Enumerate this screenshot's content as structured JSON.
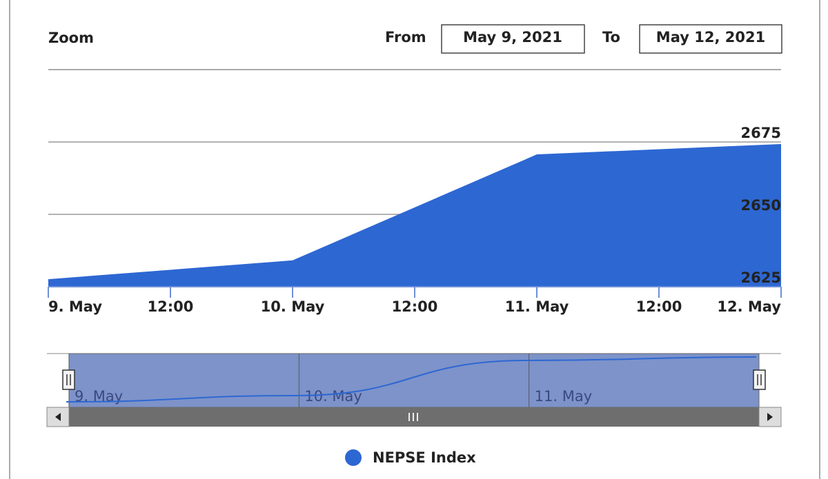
{
  "chart_data": {
    "type": "area",
    "range_selector": {
      "zoom_label": "Zoom",
      "from_label": "From",
      "from_value": "May 9, 2021",
      "to_label": "To",
      "to_value": "May 12, 2021"
    },
    "x": [
      "2021-05-09",
      "2021-05-10",
      "2021-05-11",
      "2021-05-12"
    ],
    "series": [
      {
        "name": "NEPSE Index",
        "color": "#2d67d2",
        "values": [
          2627.6,
          2634.1,
          2670.7,
          2674.3
        ]
      }
    ],
    "xlim": [
      "2021-05-09",
      "2021-05-12"
    ],
    "xticks": [
      {
        "value": "2021-05-09T00:00",
        "label": "9. May"
      },
      {
        "value": "2021-05-09T12:00",
        "label": "12:00"
      },
      {
        "value": "2021-05-10T00:00",
        "label": "10. May"
      },
      {
        "value": "2021-05-10T12:00",
        "label": "12:00"
      },
      {
        "value": "2021-05-11T00:00",
        "label": "11. May"
      },
      {
        "value": "2021-05-11T12:00",
        "label": "12:00"
      },
      {
        "value": "2021-05-12T00:00",
        "label": "12. May"
      }
    ],
    "ylim": [
      2625,
      2700
    ],
    "yticks": [
      2625,
      2650,
      2675
    ],
    "grid": true,
    "legend": "bottom"
  }
}
